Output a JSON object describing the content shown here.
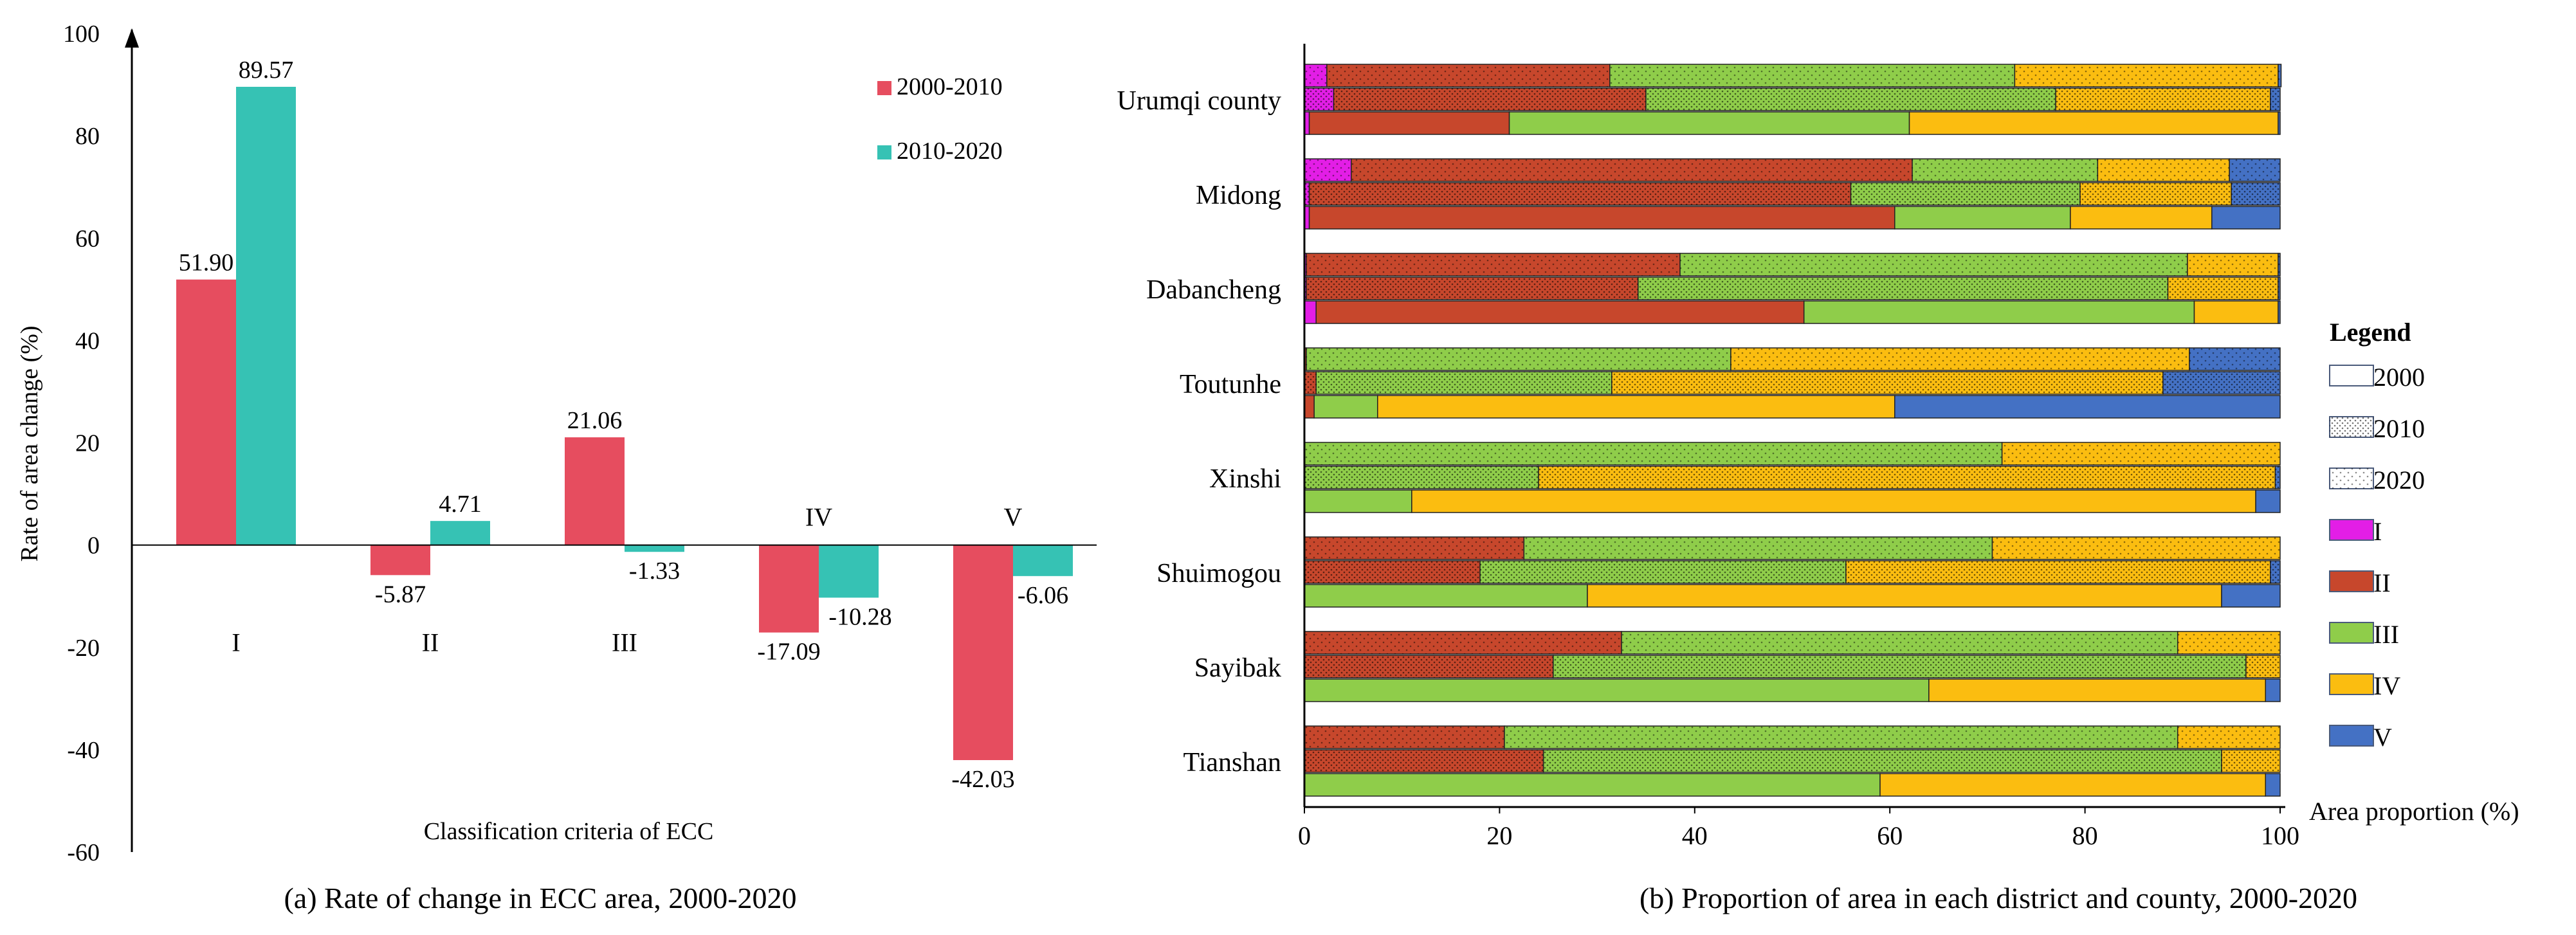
{
  "chart_data": [
    {
      "type": "bar",
      "title": "(a) Rate of change in ECC area, 2000-2020",
      "xlabel": "Classification criteria of ECC",
      "ylabel": "Rate of area change (%)",
      "ylim": [
        -60,
        100
      ],
      "yticks": [
        "100",
        "80",
        "60",
        "40",
        "20",
        "0",
        "-20",
        "-40",
        "-60"
      ],
      "categories": [
        "I",
        "II",
        "III",
        "IV",
        "V"
      ],
      "series": [
        {
          "name": "2000-2010",
          "color": "#e64d5f",
          "values": [
            51.9,
            -5.87,
            21.06,
            -17.09,
            -42.03
          ],
          "labels": [
            "51.90",
            "-5.87",
            "21.06",
            "-17.09",
            "-42.03"
          ]
        },
        {
          "name": "2010-2020",
          "color": "#36c2b4",
          "values": [
            89.57,
            4.71,
            -1.33,
            -10.28,
            -6.06
          ],
          "labels": [
            "89.57",
            "4.71",
            "-1.33",
            "-10.28",
            "-6.06"
          ]
        }
      ],
      "legend_position": "top-right"
    },
    {
      "type": "bar",
      "orientation": "horizontal",
      "stacked": true,
      "title": "(b) Proportion of area in each district and county, 2000-2020",
      "xlabel": "Area proportion (%)",
      "xlim": [
        0,
        100
      ],
      "xticks": [
        "0",
        "20",
        "40",
        "60",
        "80",
        "100"
      ],
      "classes": [
        {
          "name": "I",
          "color": "#e31ee6"
        },
        {
          "name": "II",
          "color": "#c7472c"
        },
        {
          "name": "III",
          "color": "#8fcd4a"
        },
        {
          "name": "IV",
          "color": "#fbbd10"
        },
        {
          "name": "V",
          "color": "#4471c4"
        }
      ],
      "years": [
        {
          "name": "2000",
          "pattern": "solid"
        },
        {
          "name": "2010",
          "pattern": "dense dots"
        },
        {
          "name": "2020",
          "pattern": "sparse dots"
        }
      ],
      "legend_title": "Legend",
      "districts": [
        {
          "name": "Urumqi county",
          "rows": [
            {
              "year": "2020",
              "values": [
                2.3,
                29.0,
                41.5,
                27.0,
                0.3
              ]
            },
            {
              "year": "2010",
              "values": [
                3.0,
                32.0,
                42.0,
                22.0,
                1.0
              ]
            },
            {
              "year": "2000",
              "values": [
                0.5,
                20.5,
                41.0,
                37.8,
                0.2
              ]
            }
          ]
        },
        {
          "name": "Midong",
          "rows": [
            {
              "year": "2020",
              "values": [
                4.8,
                57.5,
                19.0,
                13.5,
                5.2
              ]
            },
            {
              "year": "2010",
              "values": [
                0.5,
                55.5,
                23.5,
                15.5,
                5.0
              ]
            },
            {
              "year": "2000",
              "values": [
                0.5,
                60.0,
                18.0,
                14.5,
                7.0
              ]
            }
          ]
        },
        {
          "name": "Dabancheng",
          "rows": [
            {
              "year": "2020",
              "values": [
                0.2,
                38.3,
                52.0,
                9.3,
                0.2
              ]
            },
            {
              "year": "2010",
              "values": [
                0.2,
                34.0,
                54.3,
                11.3,
                0.2
              ]
            },
            {
              "year": "2000",
              "values": [
                1.2,
                50.0,
                40.0,
                8.6,
                0.2
              ]
            }
          ]
        },
        {
          "name": "Toutunhe",
          "rows": [
            {
              "year": "2020",
              "values": [
                0.0,
                0.2,
                43.5,
                47.0,
                9.3
              ]
            },
            {
              "year": "2010",
              "values": [
                0.0,
                1.2,
                30.3,
                56.5,
                12.0
              ]
            },
            {
              "year": "2000",
              "values": [
                0.0,
                1.0,
                6.5,
                53.0,
                39.5
              ]
            }
          ]
        },
        {
          "name": "Xinshi",
          "rows": [
            {
              "year": "2020",
              "values": [
                0.0,
                0.0,
                71.5,
                28.5,
                0.0
              ]
            },
            {
              "year": "2010",
              "values": [
                0.0,
                0.0,
                24.0,
                75.5,
                0.5
              ]
            },
            {
              "year": "2000",
              "values": [
                0.0,
                0.0,
                11.0,
                86.5,
                2.5
              ]
            }
          ]
        },
        {
          "name": "Shuimogou",
          "rows": [
            {
              "year": "2020",
              "values": [
                0.0,
                22.5,
                48.0,
                29.5,
                0.0
              ]
            },
            {
              "year": "2010",
              "values": [
                0.0,
                18.0,
                37.5,
                43.5,
                1.0
              ]
            },
            {
              "year": "2000",
              "values": [
                0.0,
                0.0,
                29.0,
                65.0,
                6.0
              ]
            }
          ]
        },
        {
          "name": "Sayibak",
          "rows": [
            {
              "year": "2020",
              "values": [
                0.0,
                32.5,
                57.0,
                10.5,
                0.0
              ]
            },
            {
              "year": "2010",
              "values": [
                0.0,
                25.5,
                71.0,
                3.5,
                0.0
              ]
            },
            {
              "year": "2000",
              "values": [
                0.0,
                0.0,
                64.0,
                34.5,
                1.5
              ]
            }
          ]
        },
        {
          "name": "Tianshan",
          "rows": [
            {
              "year": "2020",
              "values": [
                0.0,
                20.5,
                69.0,
                10.5,
                0.0
              ]
            },
            {
              "year": "2010",
              "values": [
                0.0,
                24.5,
                69.5,
                6.0,
                0.0
              ]
            },
            {
              "year": "2000",
              "values": [
                0.0,
                0.0,
                59.0,
                39.5,
                1.5
              ]
            }
          ]
        }
      ]
    }
  ]
}
